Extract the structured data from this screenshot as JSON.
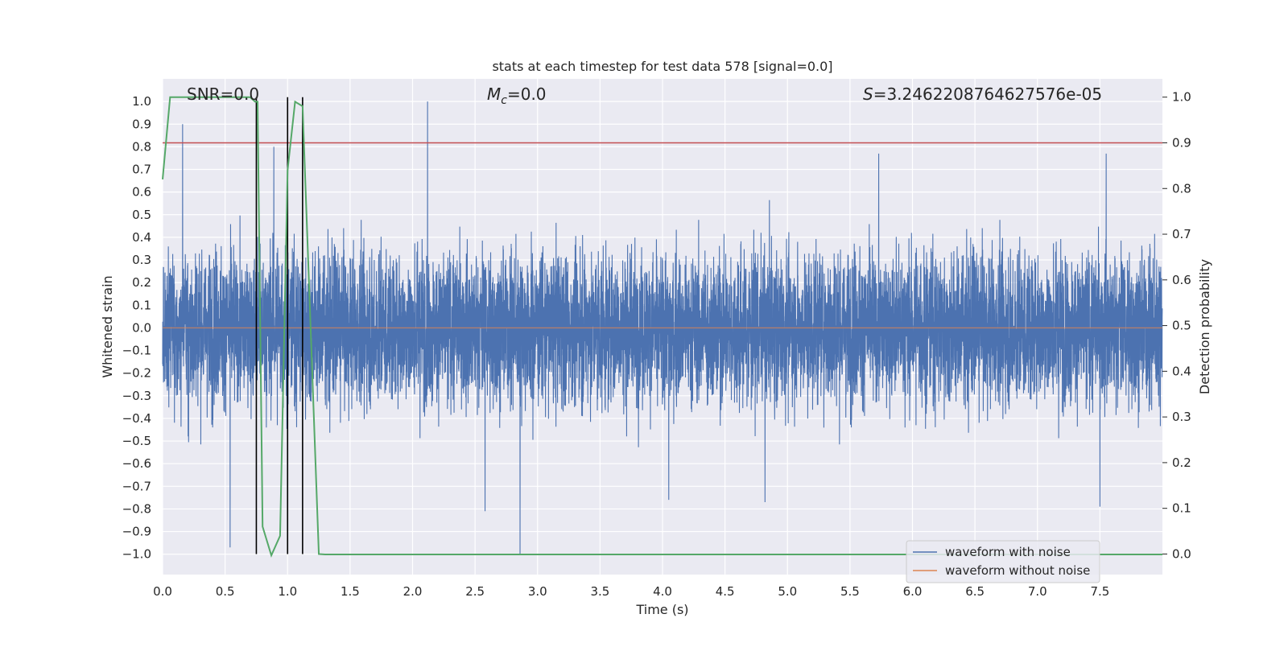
{
  "chart_data": {
    "type": "line",
    "title": "stats at each timestep for test data 578 [signal=0.0]",
    "xlabel": "Time (s)",
    "ylabel": "Whitened strain",
    "y2label": "Detection probability",
    "xlim": [
      0.0,
      8.0
    ],
    "ylim": [
      -1.09,
      1.1
    ],
    "y2lim": [
      -0.045,
      1.04
    ],
    "x_ticks": [
      "0.0",
      "0.5",
      "1.0",
      "1.5",
      "2.0",
      "2.5",
      "3.0",
      "3.5",
      "4.0",
      "4.5",
      "5.0",
      "5.5",
      "6.0",
      "6.5",
      "7.0",
      "7.5"
    ],
    "y_ticks": [
      "1.0",
      "0.9",
      "0.8",
      "0.7",
      "0.6",
      "0.5",
      "0.4",
      "0.3",
      "0.2",
      "0.1",
      "0.0",
      "−0.1",
      "−0.2",
      "−0.3",
      "−0.4",
      "−0.5",
      "−0.6",
      "−0.7",
      "−0.8",
      "−0.9",
      "−1.0"
    ],
    "y2_ticks": [
      "1.0",
      "0.9",
      "0.8",
      "0.7",
      "0.6",
      "0.5",
      "0.4",
      "0.3",
      "0.2",
      "0.1",
      "0.0"
    ],
    "grid": true,
    "background": "#eaeaf2",
    "annotations": {
      "snr": "SNR=0.0",
      "mc_symbol": "M",
      "mc_sub": "c",
      "mc_value": "=0.0",
      "s_symbol": "S",
      "s_value": "=3.2462208764627576e-05"
    },
    "series": [
      {
        "name": "waveform with noise",
        "color": "#4c72b0",
        "kind": "noise",
        "samples": 8192,
        "typical_amplitude": 0.3,
        "notable_peaks": [
          {
            "x": 0.16,
            "y": 0.9
          },
          {
            "x": 0.54,
            "y": -0.97
          },
          {
            "x": 0.89,
            "y": 0.8
          },
          {
            "x": 2.12,
            "y": 1.0
          },
          {
            "x": 2.86,
            "y": -1.0
          },
          {
            "x": 2.58,
            "y": -0.81
          },
          {
            "x": 4.05,
            "y": -0.76
          },
          {
            "x": 4.82,
            "y": -0.77
          },
          {
            "x": 5.73,
            "y": 0.77
          },
          {
            "x": 7.55,
            "y": 0.77
          },
          {
            "x": 7.5,
            "y": -0.79
          }
        ]
      },
      {
        "name": "waveform without noise",
        "color": "#dd8452",
        "kind": "flat",
        "y": 0.0
      },
      {
        "name": "detection probability",
        "color": "#55a868",
        "axis": "right",
        "x": [
          0.0,
          0.06,
          0.1,
          0.2,
          0.4,
          0.6,
          0.7,
          0.74,
          0.76,
          0.8,
          0.87,
          0.94,
          1.0,
          1.06,
          1.12,
          1.25,
          1.3,
          8.0
        ],
        "y": [
          0.82,
          1.0,
          1.0,
          1.0,
          1.0,
          1.0,
          1.0,
          0.99,
          0.99,
          0.06,
          -0.003,
          0.04,
          0.84,
          0.99,
          0.98,
          0.0,
          -0.001,
          -0.001
        ]
      }
    ],
    "threshold_line": {
      "y2": 0.9,
      "color": "#c44e52"
    },
    "vertical_markers": [
      {
        "x": 0.75,
        "color": "#000000"
      },
      {
        "x": 1.0,
        "color": "#000000"
      },
      {
        "x": 1.12,
        "color": "#000000"
      }
    ],
    "legend": {
      "placement": "lower-right",
      "entries": [
        {
          "label": "waveform with noise",
          "color": "#4c72b0"
        },
        {
          "label": "waveform without noise",
          "color": "#dd8452"
        }
      ]
    }
  }
}
